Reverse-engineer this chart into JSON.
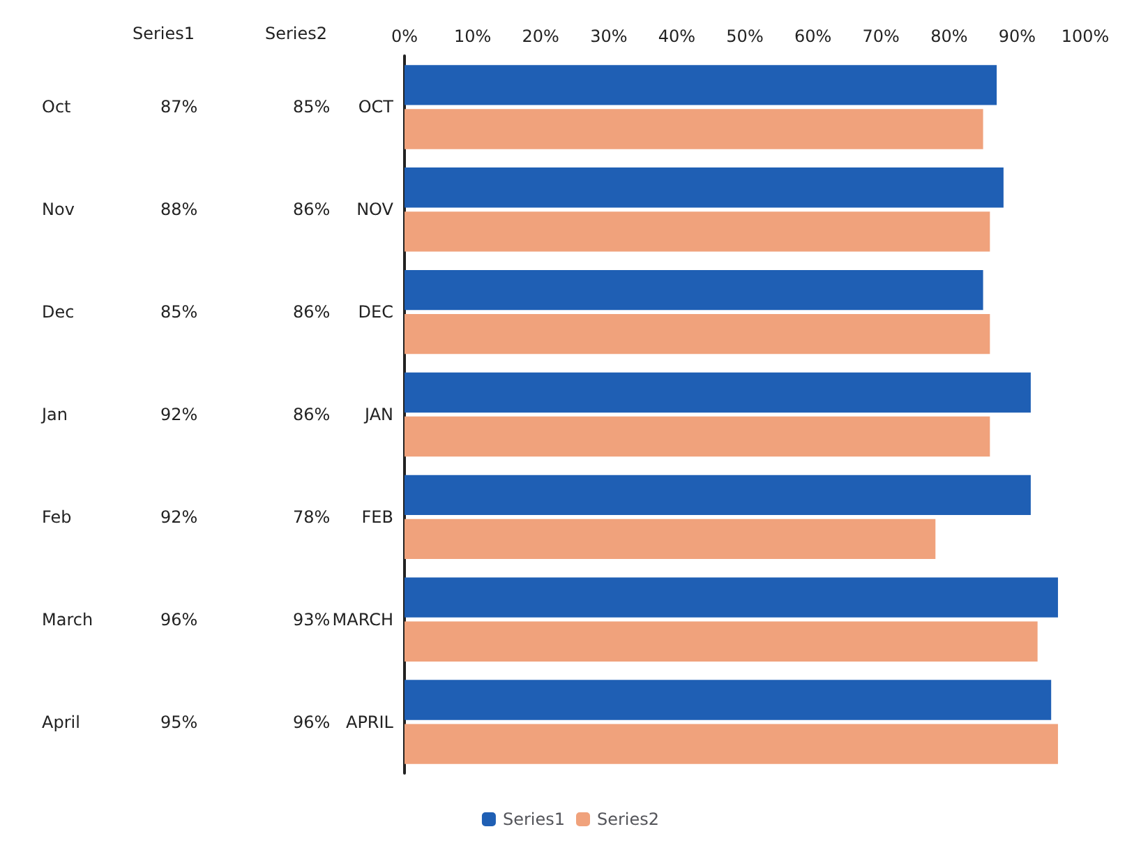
{
  "chart_data": {
    "type": "bar",
    "orientation": "horizontal",
    "categories": [
      "OCT",
      "NOV",
      "DEC",
      "JAN",
      "FEB",
      "MARCH",
      "APRIL"
    ],
    "series": [
      {
        "name": "Series1",
        "color": "#1f5fb4",
        "values": [
          87,
          88,
          85,
          92,
          92,
          96,
          95
        ],
        "value_labels": [
          "87%",
          "88%",
          "85%",
          "92%",
          "92%",
          "96%",
          "95%"
        ]
      },
      {
        "name": "Series2",
        "color": "#f0a27c",
        "values": [
          85,
          86,
          86,
          86,
          78,
          93,
          96
        ],
        "value_labels": [
          "85%",
          "86%",
          "86%",
          "86%",
          "78%",
          "93%",
          "96%"
        ]
      }
    ],
    "annotations": [
      "Oct",
      "Nov",
      "Dec",
      "Jan",
      "Feb",
      "March",
      "April"
    ],
    "xlim": [
      0,
      100
    ],
    "xticks": [
      {
        "value": 0,
        "label": "0%"
      },
      {
        "value": 10,
        "label": "10%"
      },
      {
        "value": 20,
        "label": "20%"
      },
      {
        "value": 30,
        "label": "30%"
      },
      {
        "value": 40,
        "label": "40%"
      },
      {
        "value": 50,
        "label": "50%"
      },
      {
        "value": 60,
        "label": "60%"
      },
      {
        "value": 70,
        "label": "70%"
      },
      {
        "value": 80,
        "label": "80%"
      },
      {
        "value": 90,
        "label": "90%"
      },
      {
        "value": 100,
        "label": "100%"
      }
    ],
    "grid": false,
    "legend": "bottom"
  }
}
